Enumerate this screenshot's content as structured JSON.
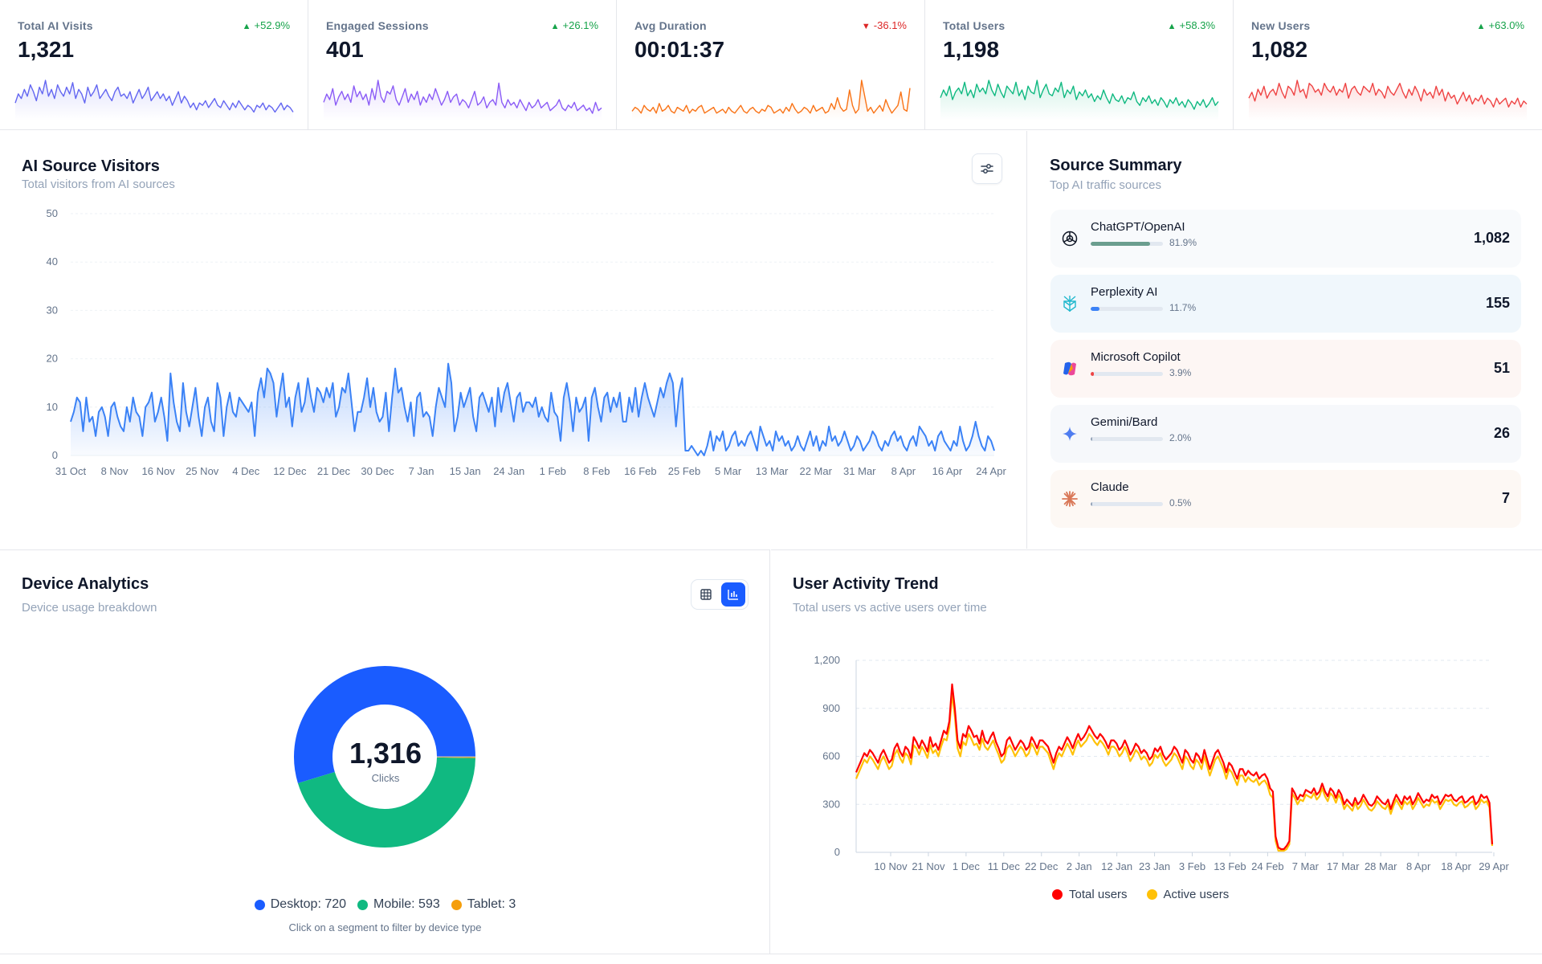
{
  "kpis": [
    {
      "label": "Total AI Visits",
      "value": "1,321",
      "delta": "+52.9%",
      "direction": "up",
      "color": "#6366f1"
    },
    {
      "label": "Engaged Sessions",
      "value": "401",
      "delta": "+26.1%",
      "direction": "up",
      "color": "#8b5cf6"
    },
    {
      "label": "Avg Duration",
      "value": "00:01:37",
      "delta": "-36.1%",
      "direction": "down",
      "color": "#f97316"
    },
    {
      "label": "Total Users",
      "value": "1,198",
      "delta": "+58.3%",
      "direction": "up",
      "color": "#10b981"
    },
    {
      "label": "New Users",
      "value": "1,082",
      "delta": "+63.0%",
      "direction": "up",
      "color": "#ef4444"
    }
  ],
  "ai_visitors": {
    "title": "AI Source Visitors",
    "subtitle": "Total visitors from AI sources",
    "filter_icon": "sliders-icon"
  },
  "source_summary": {
    "title": "Source Summary",
    "subtitle": "Top AI traffic sources",
    "items": [
      {
        "name": "ChatGPT/OpenAI",
        "pct": "81.9%",
        "share": 0.819,
        "value": "1,082",
        "bar_color": "#6b9e8f",
        "bg": "#f8fafc",
        "icon": "openai-icon"
      },
      {
        "name": "Perplexity AI",
        "pct": "11.7%",
        "share": 0.117,
        "value": "155",
        "bar_color": "#3b82f6",
        "bg": "#f0f7fc",
        "icon": "perplexity-icon"
      },
      {
        "name": "Microsoft Copilot",
        "pct": "3.9%",
        "share": 0.039,
        "value": "51",
        "bar_color": "#ef4444",
        "bg": "#fdf6f4",
        "icon": "copilot-icon"
      },
      {
        "name": "Gemini/Bard",
        "pct": "2.0%",
        "share": 0.02,
        "value": "26",
        "bar_color": "#94a3b8",
        "bg": "#f6f8fb",
        "icon": "gemini-icon"
      },
      {
        "name": "Claude",
        "pct": "0.5%",
        "share": 0.005,
        "value": "7",
        "bar_color": "#94a3b8",
        "bg": "#fdf8f4",
        "icon": "claude-icon"
      }
    ]
  },
  "device_analytics": {
    "title": "Device Analytics",
    "subtitle": "Device usage breakdown",
    "center_value": "1,316",
    "center_label": "Clicks",
    "hint": "Click on a segment to filter by device type",
    "legend": [
      {
        "label": "Desktop: 720",
        "color": "#1a5cff"
      },
      {
        "label": "Mobile: 593",
        "color": "#10b981"
      },
      {
        "label": "Tablet: 3",
        "color": "#f59e0b"
      }
    ]
  },
  "activity_trend": {
    "title": "User Activity Trend",
    "subtitle": "Total users vs active users over time",
    "legend": [
      {
        "label": "Total users",
        "color": "#ff0000"
      },
      {
        "label": "Active users",
        "color": "#ffc107"
      }
    ]
  },
  "chart_data": [
    {
      "type": "area",
      "title": "AI Source Visitors",
      "ylim": [
        0,
        50
      ],
      "y_ticks": [
        0,
        10,
        20,
        30,
        40,
        50
      ],
      "x_ticks": [
        "31 Oct",
        "8 Nov",
        "16 Nov",
        "25 Nov",
        "4 Dec",
        "12 Dec",
        "21 Dec",
        "30 Dec",
        "7 Jan",
        "15 Jan",
        "24 Jan",
        "1 Feb",
        "8 Feb",
        "16 Feb",
        "25 Feb",
        "5 Mar",
        "13 Mar",
        "22 Mar",
        "31 Mar",
        "8 Apr",
        "16 Apr",
        "24 Apr"
      ],
      "series": [
        {
          "color": "#3b82f6",
          "values": [
            7,
            9,
            12,
            11,
            5,
            12,
            7,
            8,
            4,
            9,
            10,
            8,
            4,
            10,
            11,
            8,
            6,
            5,
            10,
            7,
            12,
            9,
            8,
            4,
            10,
            11,
            13,
            7,
            9,
            12,
            8,
            3,
            17,
            11,
            7,
            5,
            15,
            9,
            6,
            10,
            14,
            8,
            4,
            10,
            12,
            7,
            5,
            15,
            12,
            4,
            10,
            13,
            9,
            8,
            12,
            11,
            10,
            9,
            11,
            4,
            13,
            16,
            12,
            18,
            17,
            15,
            8,
            13,
            17,
            10,
            12,
            6,
            12,
            15,
            9,
            11,
            16,
            12,
            9,
            14,
            13,
            11,
            14,
            12,
            15,
            8,
            10,
            14,
            13,
            17,
            11,
            5,
            9,
            9,
            12,
            16,
            10,
            14,
            9,
            7,
            8,
            13,
            5,
            12,
            18,
            13,
            14,
            10,
            7,
            11,
            4,
            12,
            13,
            8,
            9,
            8,
            4,
            10,
            14,
            12,
            10,
            19,
            15,
            5,
            8,
            13,
            10,
            12,
            14,
            8,
            5,
            12,
            13,
            11,
            9,
            12,
            6,
            14,
            9,
            13,
            15,
            11,
            7,
            12,
            13,
            9,
            11,
            11,
            10,
            12,
            8,
            10,
            8,
            7,
            13,
            9,
            8,
            3,
            12,
            15,
            11,
            5,
            12,
            9,
            10,
            12,
            3,
            12,
            14,
            10,
            7,
            12,
            13,
            9,
            12,
            10,
            13,
            7,
            7,
            12,
            9,
            14,
            8,
            12,
            15,
            12,
            10,
            8,
            11,
            14,
            12,
            15,
            17,
            15,
            6,
            13,
            16,
            1,
            1,
            2,
            1,
            0,
            1,
            0,
            2,
            5,
            1,
            4,
            3,
            5,
            1,
            2,
            4,
            5,
            2,
            3,
            2,
            4,
            5,
            3,
            1,
            6,
            4,
            2,
            3,
            1,
            5,
            3,
            4,
            2,
            3,
            1,
            2,
            4,
            2,
            1,
            3,
            5,
            2,
            4,
            1,
            3,
            2,
            6,
            3,
            4,
            2,
            3,
            5,
            3,
            1,
            2,
            4,
            3,
            1,
            2,
            3,
            5,
            4,
            2,
            1,
            3,
            2,
            4,
            5,
            3,
            4,
            2,
            1,
            3,
            4,
            2,
            6,
            5,
            4,
            2,
            3,
            1,
            4,
            5,
            3,
            2,
            1,
            3,
            2,
            6,
            3,
            1,
            2,
            4,
            7,
            4,
            2,
            1,
            4,
            3,
            1
          ]
        }
      ]
    },
    {
      "type": "pie",
      "title": "Device Analytics",
      "categories": [
        "Desktop",
        "Mobile",
        "Tablet"
      ],
      "values": [
        720,
        593,
        3
      ],
      "colors": [
        "#1a5cff",
        "#10b981",
        "#f59e0b"
      ],
      "total": 1316
    },
    {
      "type": "line",
      "title": "User Activity Trend",
      "ylim": [
        0,
        1200
      ],
      "y_ticks": [
        0,
        300,
        600,
        900,
        1200
      ],
      "y_tick_labels": [
        "0",
        "300",
        "600",
        "900",
        "1,200"
      ],
      "x_ticks": [
        "10 Nov",
        "21 Nov",
        "1 Dec",
        "11 Dec",
        "22 Dec",
        "2 Jan",
        "12 Jan",
        "23 Jan",
        "3 Feb",
        "13 Feb",
        "24 Feb",
        "7 Mar",
        "17 Mar",
        "28 Mar",
        "8 Apr",
        "18 Apr",
        "29 Apr"
      ],
      "series": [
        {
          "name": "Total users",
          "color": "#ff0000",
          "values": [
            500,
            540,
            580,
            620,
            600,
            640,
            620,
            590,
            560,
            610,
            640,
            600,
            560,
            580,
            650,
            680,
            630,
            600,
            660,
            640,
            590,
            720,
            690,
            650,
            700,
            670,
            630,
            720,
            660,
            680,
            640,
            700,
            760,
            740,
            820,
            1050,
            900,
            700,
            650,
            740,
            720,
            790,
            760,
            720,
            730,
            680,
            760,
            700,
            680,
            720,
            750,
            690,
            650,
            600,
            620,
            700,
            720,
            680,
            640,
            670,
            700,
            680,
            640,
            660,
            720,
            690,
            650,
            700,
            700,
            680,
            660,
            610,
            560,
            620,
            660,
            640,
            680,
            720,
            690,
            650,
            700,
            740,
            700,
            720,
            750,
            790,
            760,
            730,
            710,
            740,
            720,
            690,
            650,
            700,
            700,
            680,
            640,
            660,
            700,
            660,
            610,
            640,
            680,
            660,
            620,
            640,
            620,
            580,
            600,
            650,
            630,
            660,
            610,
            580,
            600,
            620,
            660,
            640,
            600,
            560,
            640,
            620,
            580,
            560,
            620,
            600,
            560,
            640,
            580,
            520,
            570,
            620,
            640,
            600,
            560,
            500,
            560,
            540,
            500,
            460,
            520,
            520,
            480,
            510,
            490,
            480,
            500,
            460,
            480,
            490,
            460,
            400,
            380,
            100,
            30,
            20,
            20,
            40,
            70,
            400,
            370,
            330,
            360,
            350,
            390,
            380,
            370,
            400,
            360,
            380,
            430,
            380,
            350,
            400,
            380,
            340,
            390,
            360,
            300,
            330,
            310,
            290,
            340,
            300,
            320,
            360,
            330,
            300,
            290,
            310,
            350,
            330,
            310,
            300,
            330,
            270,
            320,
            360,
            330,
            300,
            350,
            330,
            350,
            300,
            330,
            370,
            340,
            310,
            330,
            320,
            360,
            340,
            350,
            300,
            330,
            360,
            350,
            360,
            330,
            320,
            340,
            350,
            310,
            320,
            340,
            350,
            300,
            320,
            360,
            340,
            350,
            310,
            50
          ]
        },
        {
          "name": "Active users",
          "color": "#ffc107",
          "values": [
            460,
            500,
            540,
            580,
            560,
            600,
            580,
            550,
            520,
            570,
            600,
            560,
            520,
            540,
            610,
            640,
            590,
            560,
            620,
            600,
            550,
            670,
            650,
            610,
            660,
            630,
            590,
            670,
            620,
            640,
            600,
            660,
            710,
            700,
            780,
            990,
            850,
            650,
            600,
            690,
            670,
            740,
            710,
            670,
            680,
            640,
            710,
            660,
            640,
            670,
            700,
            650,
            610,
            560,
            580,
            650,
            670,
            640,
            600,
            630,
            660,
            640,
            600,
            620,
            680,
            650,
            610,
            660,
            660,
            640,
            620,
            570,
            520,
            580,
            620,
            600,
            640,
            680,
            650,
            610,
            660,
            700,
            660,
            680,
            700,
            740,
            720,
            690,
            670,
            700,
            680,
            650,
            610,
            660,
            660,
            640,
            600,
            620,
            660,
            620,
            570,
            600,
            640,
            620,
            580,
            600,
            580,
            540,
            560,
            610,
            590,
            620,
            570,
            540,
            560,
            580,
            620,
            600,
            560,
            520,
            600,
            580,
            540,
            520,
            580,
            560,
            520,
            600,
            540,
            480,
            530,
            580,
            600,
            560,
            520,
            460,
            520,
            500,
            460,
            420,
            480,
            480,
            440,
            470,
            450,
            440,
            460,
            420,
            440,
            450,
            420,
            360,
            340,
            70,
            10,
            10,
            10,
            20,
            50,
            370,
            340,
            300,
            330,
            320,
            360,
            350,
            340,
            370,
            330,
            350,
            400,
            350,
            320,
            370,
            350,
            310,
            360,
            330,
            270,
            300,
            280,
            260,
            310,
            270,
            290,
            330,
            300,
            270,
            260,
            280,
            320,
            300,
            280,
            270,
            300,
            240,
            290,
            330,
            300,
            270,
            320,
            300,
            320,
            270,
            300,
            340,
            310,
            280,
            300,
            290,
            330,
            310,
            320,
            270,
            300,
            330,
            320,
            330,
            300,
            290,
            310,
            320,
            280,
            290,
            310,
            320,
            270,
            290,
            330,
            310,
            320,
            280,
            40
          ]
        }
      ]
    }
  ]
}
